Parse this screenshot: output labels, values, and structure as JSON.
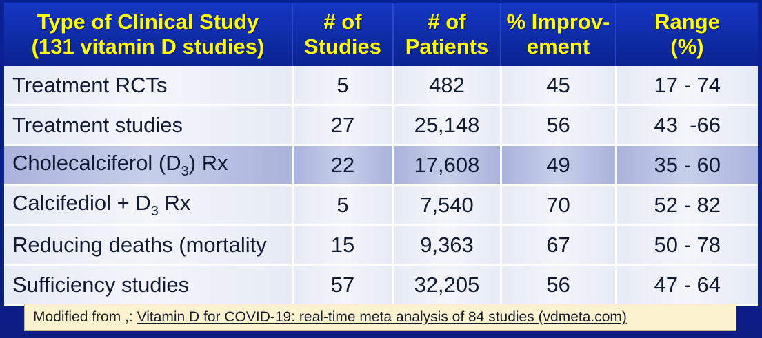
{
  "table": {
    "headers": [
      {
        "line1": "Type of Clinical Study",
        "line2": "(131 vitamin D studies)"
      },
      {
        "line1": "# of",
        "line2": "Studies"
      },
      {
        "line1": "# of",
        "line2": "Patients"
      },
      {
        "line1": "% Improv-",
        "line2": "ement"
      },
      {
        "line1": "Range",
        "line2": "(%)"
      }
    ],
    "rows": [
      {
        "type": "Treatment RCTs",
        "studies": "5",
        "patients": "482",
        "improvement": "45",
        "range": "17 - 74"
      },
      {
        "type": "Treatment studies",
        "studies": "27",
        "patients": "25,148",
        "improvement": "56",
        "range": "43  -66"
      },
      {
        "type_pre": "Cholecalciferol (D",
        "type_sub": "3",
        "type_post": ") Rx",
        "studies": "22",
        "patients": "17,608",
        "improvement": "49",
        "range": "35 - 60"
      },
      {
        "type_pre": "Calcifediol + D",
        "type_sub": "3",
        "type_post": " Rx",
        "studies": "5",
        "patients": "7,540",
        "improvement": "70",
        "range": "52 - 82"
      },
      {
        "type": "Reducing deaths (mortality",
        "studies": "15",
        "patients": "9,363",
        "improvement": "67",
        "range": "50 - 78"
      },
      {
        "type": "Sufficiency studies",
        "studies": "57",
        "patients": "32,205",
        "improvement": "56",
        "range": "47 - 64"
      }
    ]
  },
  "footer": {
    "prefix": "Modified from ,: ",
    "link": "Vitamin D for COVID-19: real-time meta analysis of 84 studies (vdmeta.com)"
  },
  "colors": {
    "header_bg": "#0b238f",
    "header_text": "#ffff00",
    "row_light": "#f3f5fb",
    "row_dark": "#c7cfea",
    "footer_bg": "#fbf3cf"
  }
}
